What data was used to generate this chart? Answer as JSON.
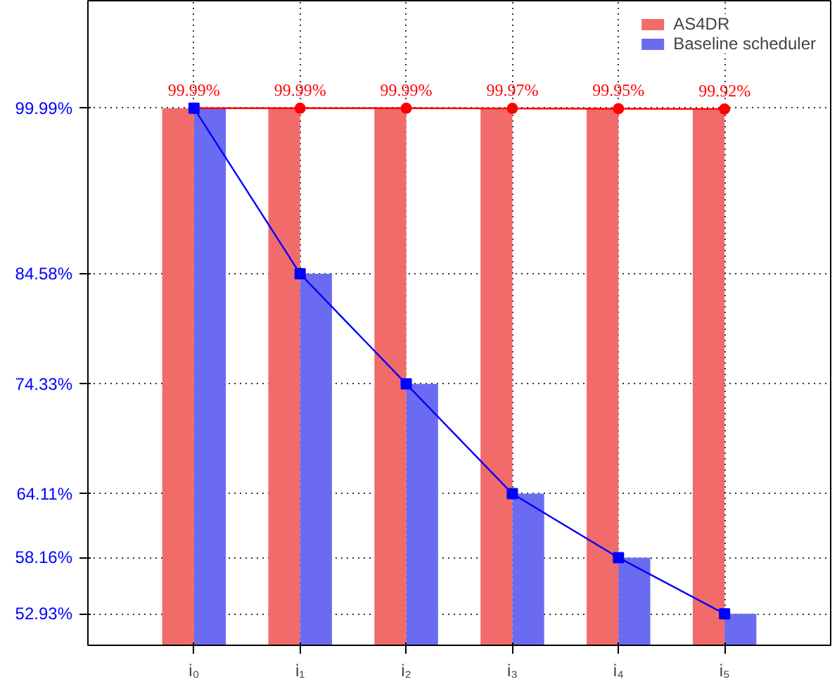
{
  "chart_data": {
    "type": "bar",
    "categories": [
      "i₀",
      "i₁",
      "i₂",
      "i₃",
      "i₄",
      "i₅"
    ],
    "ylim": [
      50,
      110
    ],
    "yticks": [
      {
        "value": 52.93,
        "label": "52.93%"
      },
      {
        "value": 58.16,
        "label": "58.16%"
      },
      {
        "value": 64.11,
        "label": "64.11%"
      },
      {
        "value": 74.33,
        "label": "74.33%"
      },
      {
        "value": 84.58,
        "label": "84.58%"
      },
      {
        "value": 99.99,
        "label": "99.99%"
      }
    ],
    "grid": true,
    "legend": "top right",
    "series": [
      {
        "name": "AS4DR",
        "color": "#f26b6b",
        "values": [
          99.99,
          99.99,
          99.99,
          99.97,
          99.95,
          99.92
        ]
      },
      {
        "name": "Baseline scheduler",
        "color": "#6b6bf2",
        "values": [
          99.99,
          84.58,
          74.33,
          64.11,
          58.16,
          52.93
        ]
      },
      {
        "type": "line",
        "color": "#ff0000",
        "marker": "circle",
        "values": [
          99.99,
          99.99,
          99.99,
          99.97,
          99.95,
          99.92
        ],
        "value_labels": [
          "99.99%",
          "99.99%",
          "99.99%",
          "99.97%",
          "99.95%",
          "99.92%"
        ]
      },
      {
        "type": "line",
        "color": "#0000ff",
        "marker": "square",
        "values": [
          99.99,
          84.58,
          74.33,
          64.11,
          58.16,
          52.93
        ]
      }
    ]
  }
}
